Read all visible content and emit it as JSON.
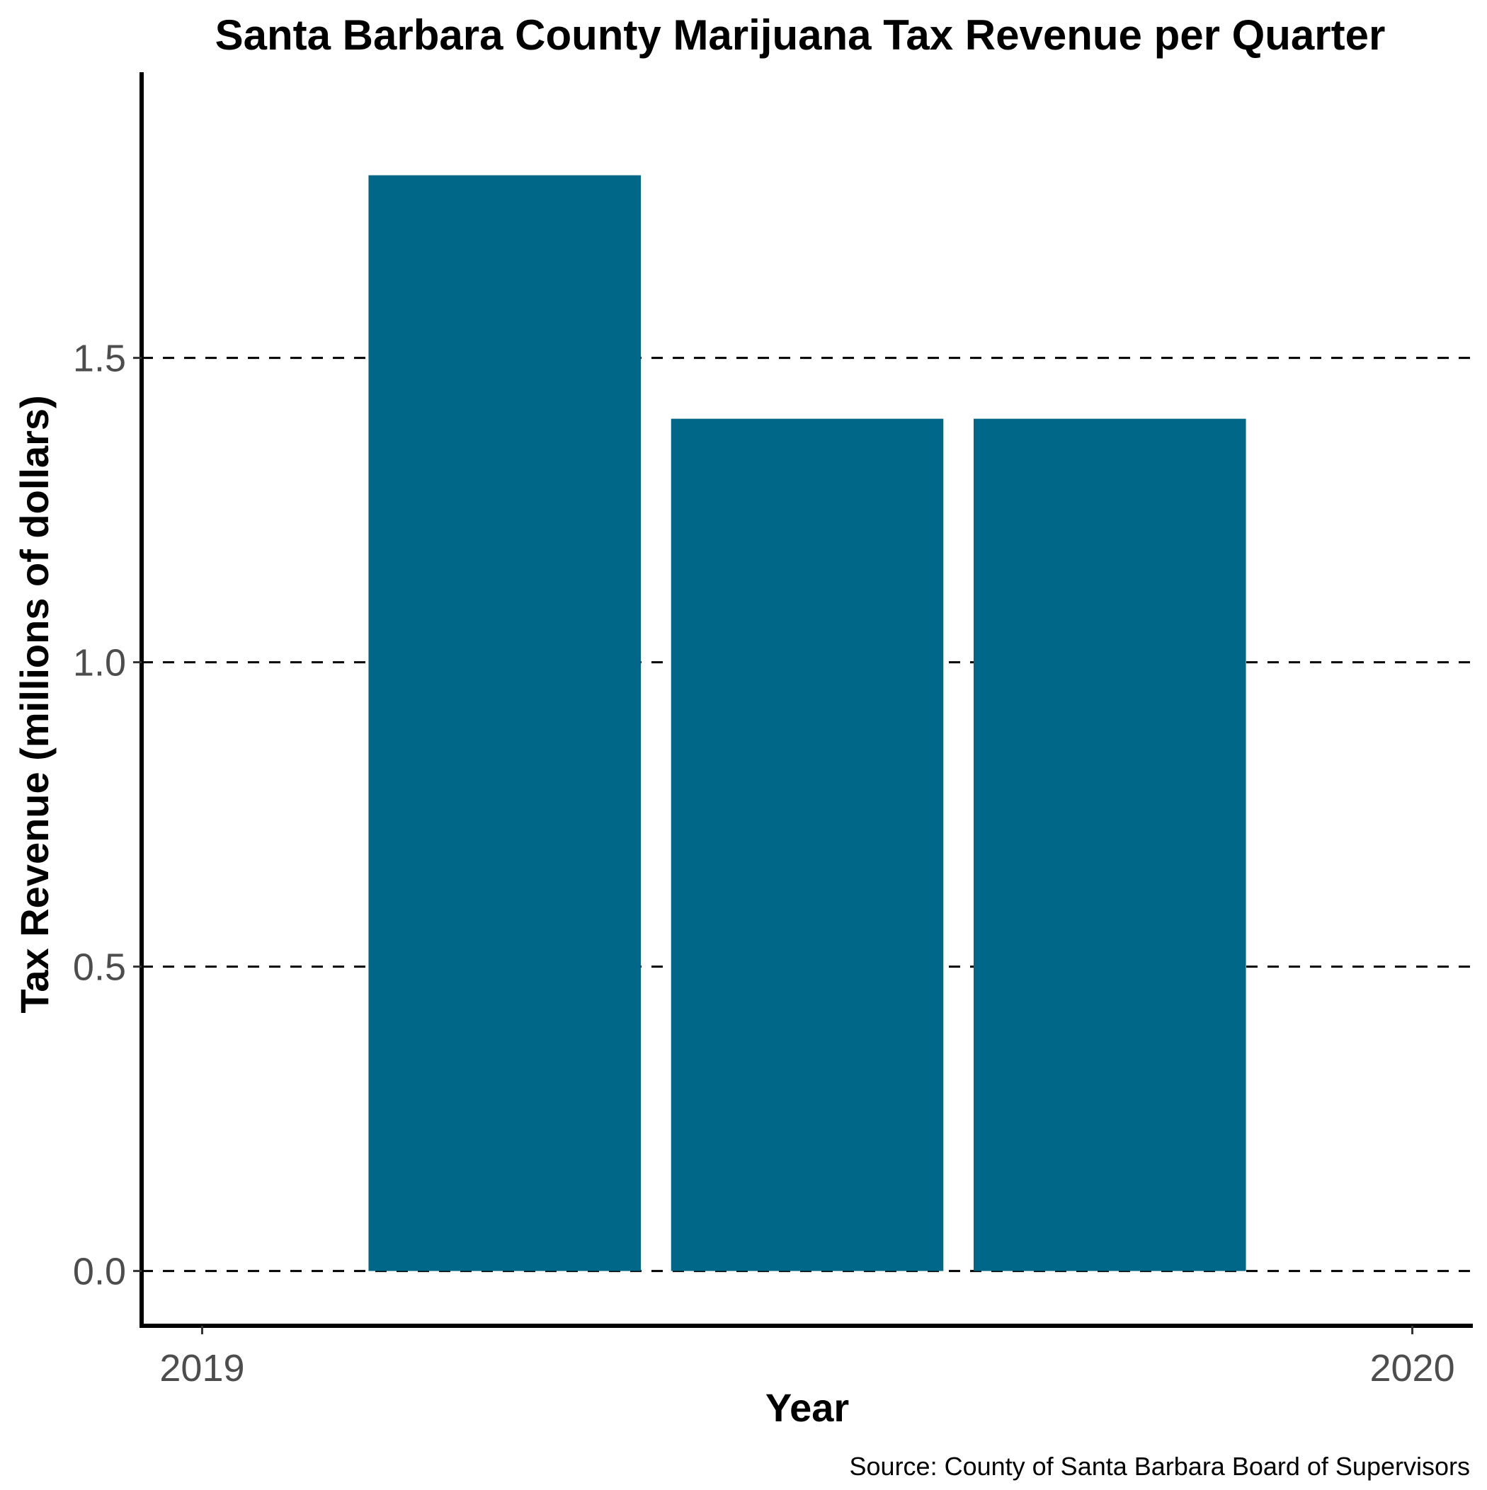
{
  "chart_data": {
    "type": "bar",
    "title": "Santa Barbara County Marijuana Tax Revenue per Quarter",
    "xlabel": "Year",
    "ylabel": "Tax Revenue (millions of dollars)",
    "caption": "Source: County of Santa Barbara Board of Supervisors",
    "x": [
      2019.25,
      2019.5,
      2019.75
    ],
    "values": [
      1.8,
      1.4,
      1.4
    ],
    "xlim": [
      2018.95,
      2020.05
    ],
    "ylim": [
      -0.09,
      1.96
    ],
    "x_ticks": [
      2019,
      2020
    ],
    "x_tick_labels": [
      "2019",
      "2020"
    ],
    "y_ticks": [
      0.0,
      0.5,
      1.0,
      1.5
    ],
    "y_tick_labels": [
      "0.0",
      "0.5",
      "1.0",
      "1.5"
    ],
    "grid": "horizontal dashed",
    "bar_color": "#006789",
    "legend": "none"
  }
}
